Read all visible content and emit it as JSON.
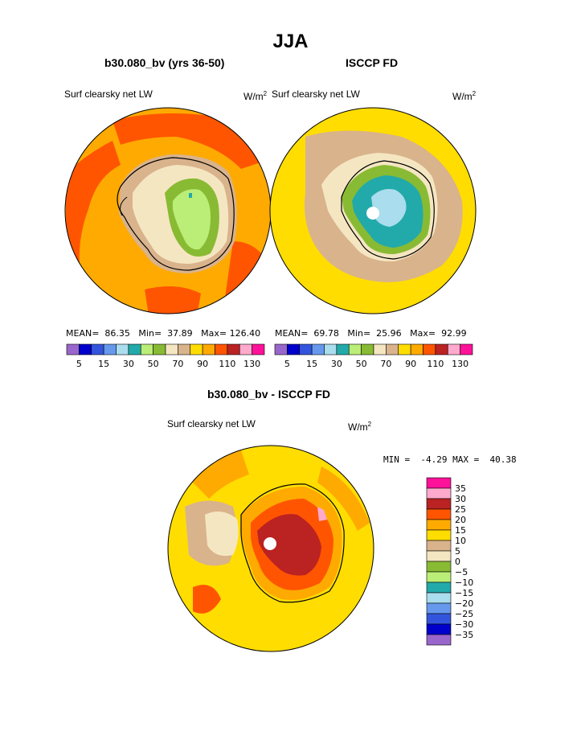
{
  "page_title": "JJA",
  "colors": {
    "land_outline": "#000000",
    "background": "#ffffff"
  },
  "chart_data": [
    {
      "type": "heatmap",
      "projection": "south-polar-stereographic",
      "title": "b30.080_bv (yrs 36-50)",
      "left_label": "Surf clearsky net LW",
      "units": "W/m",
      "units_exp": "2",
      "stats": {
        "mean_label": "MEAN=",
        "mean": "86.35",
        "min_label": "Min=",
        "min": "37.89",
        "max_label": "Max=",
        "max": "126.40"
      },
      "colorbar": {
        "tick_labels": [
          "5",
          "15",
          "30",
          "50",
          "70",
          "90",
          "110",
          "130"
        ],
        "colors": [
          "#9966cc",
          "#0000cc",
          "#3355dd",
          "#6699ee",
          "#aaddee",
          "#22aaaa",
          "#bbee77",
          "#88bb33",
          "#f5e6c2",
          "#d9b38c",
          "#ffdd00",
          "#ffaa00",
          "#ff5500",
          "#bb2222",
          "#ffaacc",
          "#ff1199"
        ]
      }
    },
    {
      "type": "heatmap",
      "projection": "south-polar-stereographic",
      "title": "ISCCP FD",
      "left_label": "Surf clearsky net LW",
      "units": "W/m",
      "units_exp": "2",
      "stats": {
        "mean_label": "MEAN=",
        "mean": "69.78",
        "min_label": "Min=",
        "min": "25.96",
        "max_label": "Max=",
        "max": "92.99"
      },
      "colorbar": {
        "tick_labels": [
          "5",
          "15",
          "30",
          "50",
          "70",
          "90",
          "110",
          "130"
        ],
        "colors": [
          "#9966cc",
          "#0000cc",
          "#3355dd",
          "#6699ee",
          "#aaddee",
          "#22aaaa",
          "#bbee77",
          "#88bb33",
          "#f5e6c2",
          "#d9b38c",
          "#ffdd00",
          "#ffaa00",
          "#ff5500",
          "#bb2222",
          "#ffaacc",
          "#ff1199"
        ]
      }
    },
    {
      "type": "heatmap",
      "projection": "south-polar-stereographic",
      "title": "b30.080_bv - ISCCP FD",
      "left_label": "Surf clearsky net LW",
      "units": "W/m",
      "units_exp": "2",
      "stats": {
        "min_label": "MIN =",
        "min": "-4.29",
        "max_label": "MAX =",
        "max": "40.38"
      },
      "colorbar": {
        "tick_labels": [
          "35",
          "30",
          "25",
          "20",
          "15",
          "10",
          "5",
          "0",
          "−5",
          "−10",
          "−15",
          "−20",
          "−25",
          "−30",
          "−35"
        ],
        "colors": [
          "#ff1199",
          "#ffaacc",
          "#bb2222",
          "#ff5500",
          "#ffaa00",
          "#ffdd00",
          "#d9b38c",
          "#f5e6c2",
          "#88bb33",
          "#bbee77",
          "#22aaaa",
          "#aaddee",
          "#6699ee",
          "#3355dd",
          "#0000cc",
          "#9966cc"
        ]
      }
    }
  ]
}
